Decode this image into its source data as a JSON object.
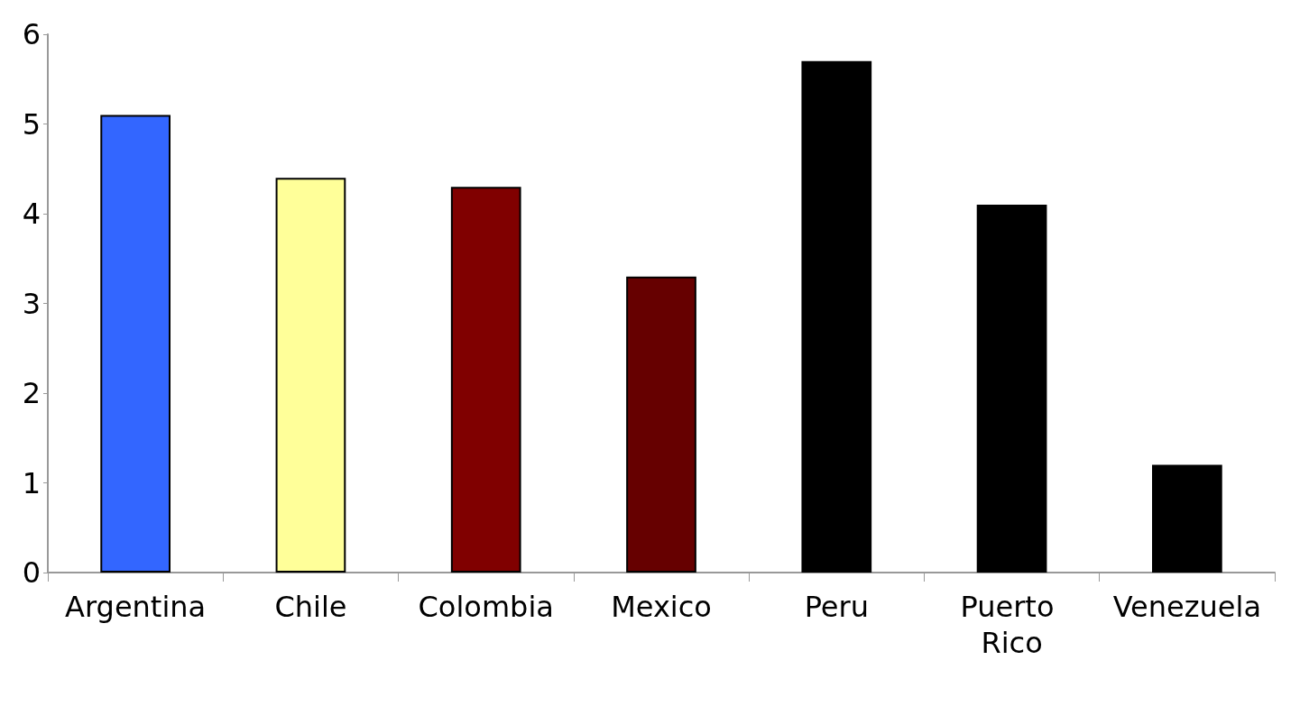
{
  "chart_data": {
    "type": "bar",
    "categories": [
      "Argentina",
      "Chile",
      "Colombia",
      "Mexico",
      "Peru",
      "Puerto Rico",
      "Venezuela"
    ],
    "values": [
      5.1,
      4.4,
      4.3,
      3.3,
      5.7,
      4.1,
      1.2
    ],
    "colors": [
      "#3366ff",
      "#ffff99",
      "#800000",
      "#660000",
      "#000000",
      "#000000",
      "#000000"
    ],
    "ylim": [
      0,
      6
    ],
    "yticks": [
      0,
      1,
      2,
      3,
      4,
      5,
      6
    ],
    "grid": false
  }
}
